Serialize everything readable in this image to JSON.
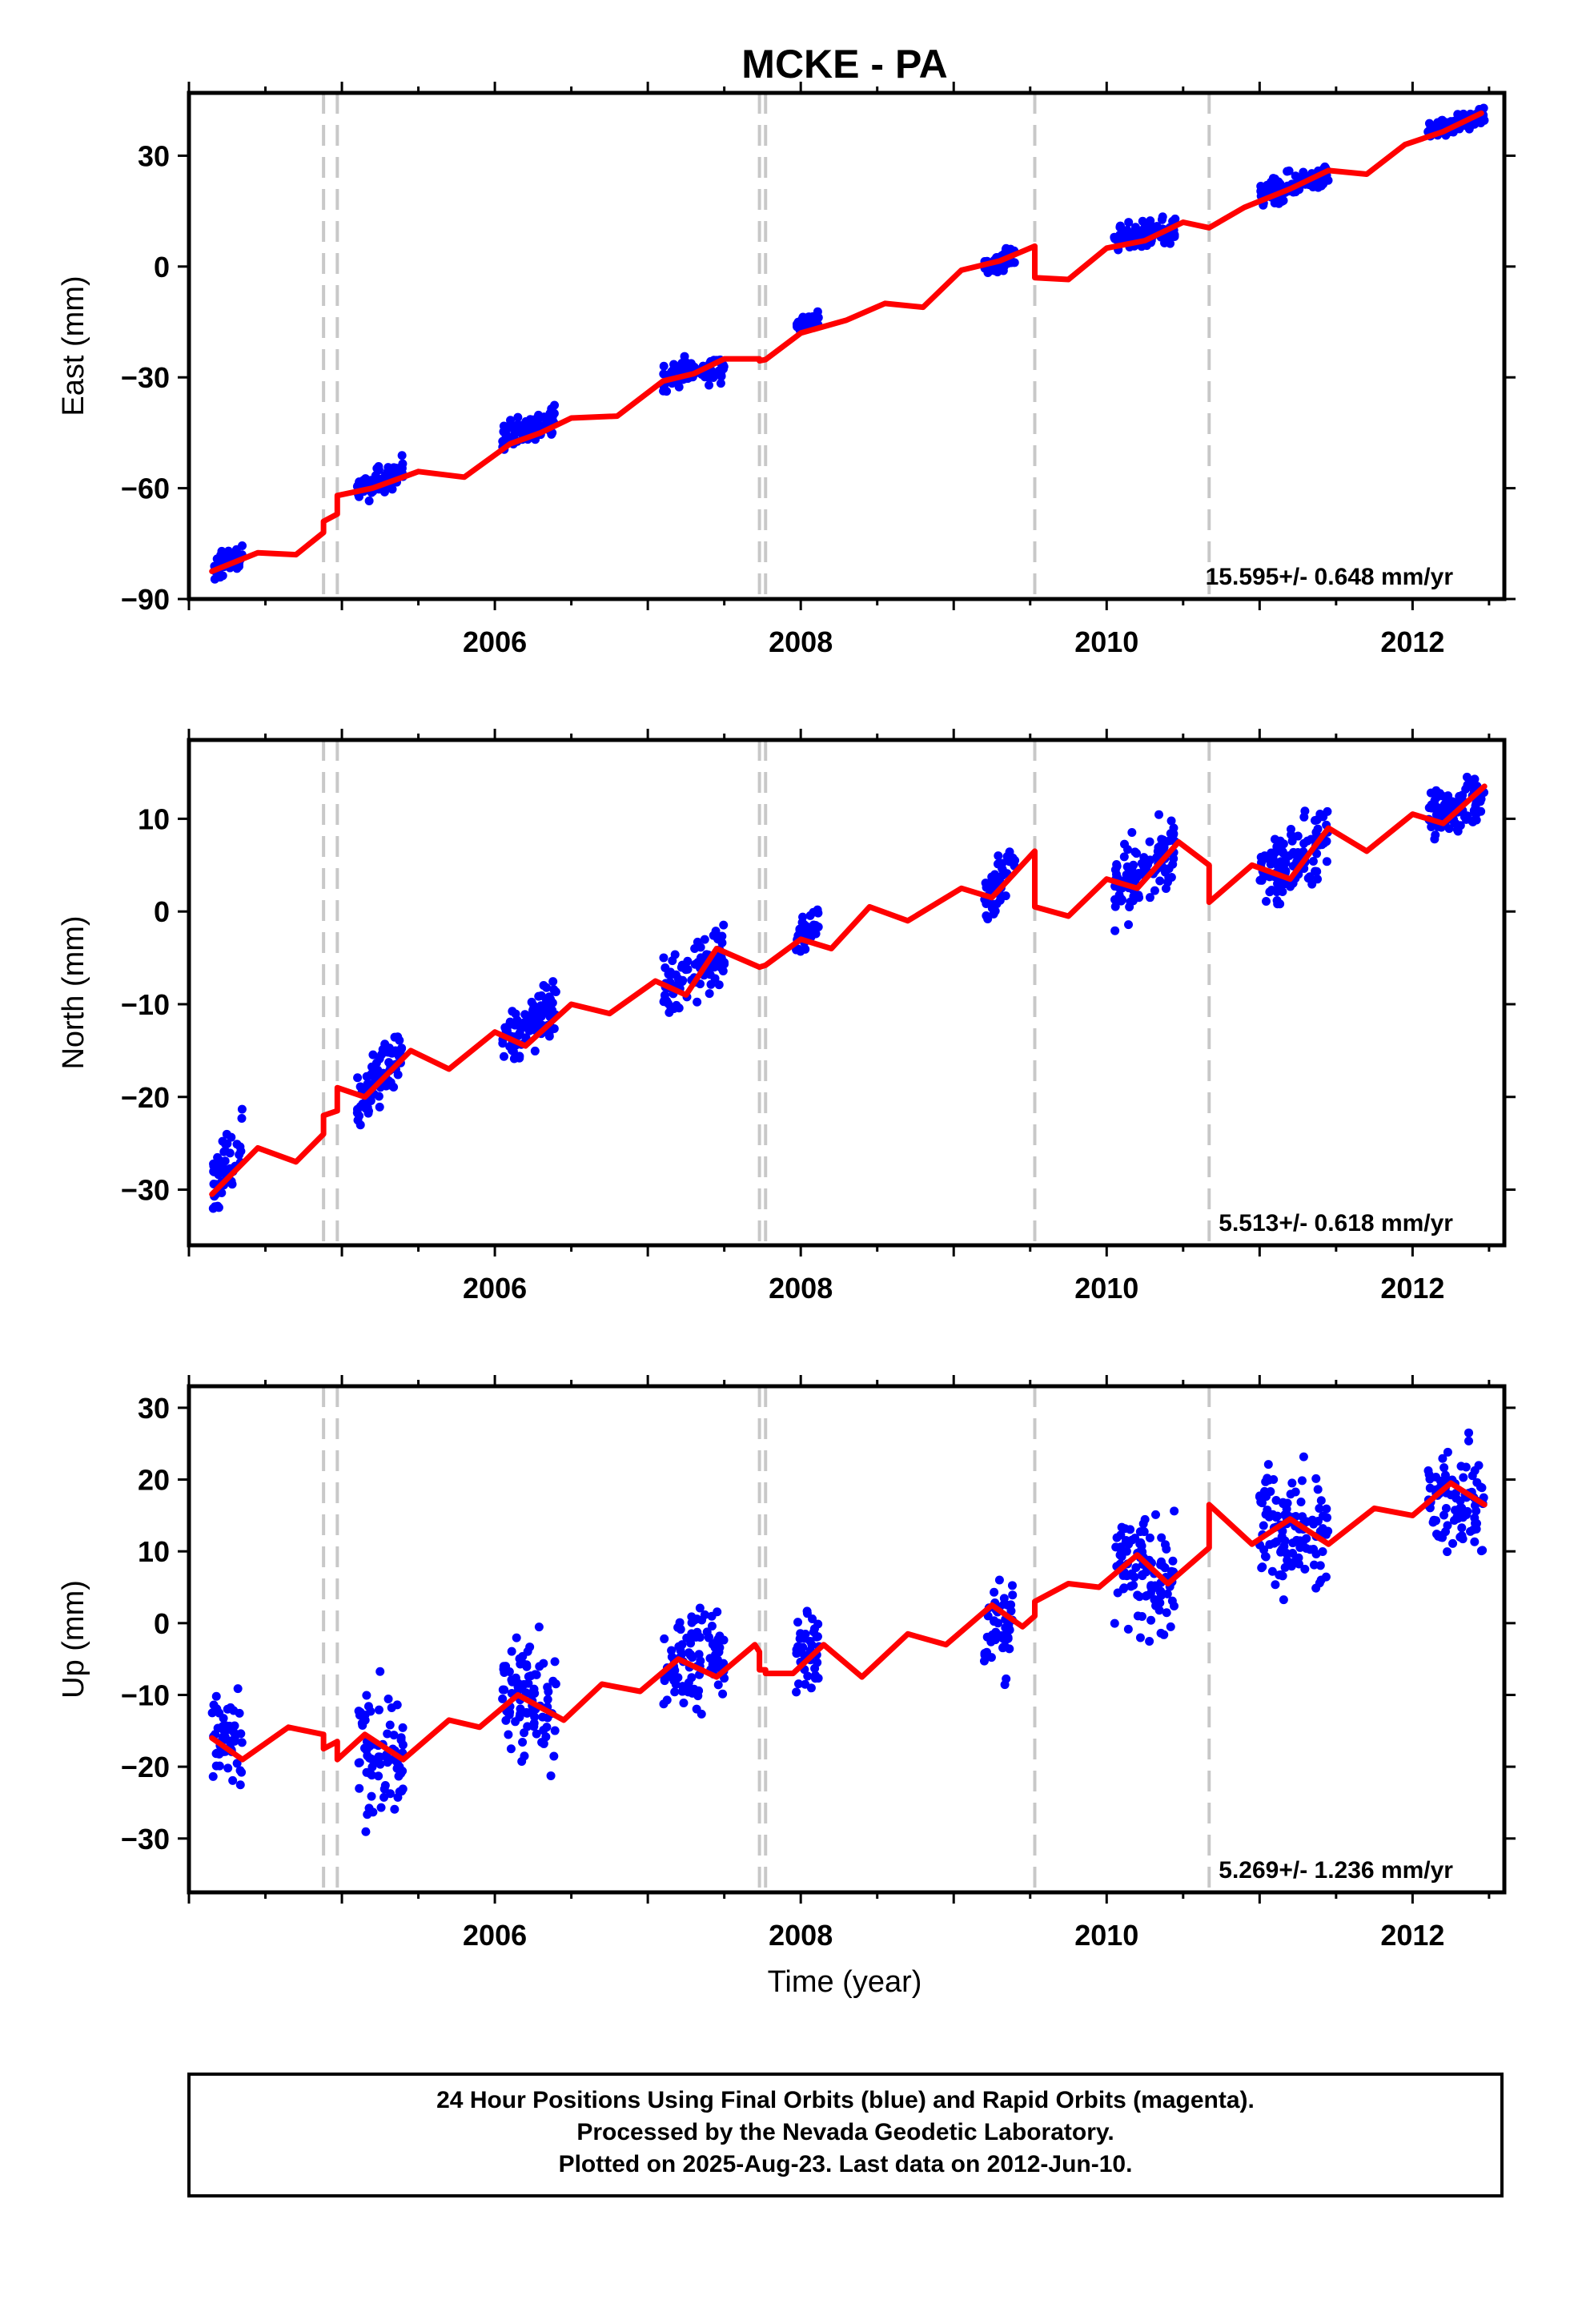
{
  "title": "MCKE - PA",
  "xlabel": "Time (year)",
  "footer": {
    "line1": "24 Hour Positions Using Final Orbits (blue) and Rapid Orbits (magenta).",
    "line2": "Processed by the Nevada Geodetic Laboratory.",
    "line3": "Plotted on 2025-Aug-23. Last data on 2012-Jun-10."
  },
  "colors": {
    "data_points": "#0000ff",
    "model_line": "#ff0000",
    "offset_lines": "#c8c8c8",
    "frame": "#000000"
  },
  "chart_data": [
    {
      "type": "scatter",
      "name": "east",
      "ylabel": "East (mm)",
      "rate_text": "15.595+/- 0.648 mm/yr",
      "xlim": [
        2004.0,
        2012.6
      ],
      "ylim": [
        -90,
        47
      ],
      "xticks": [
        2006,
        2008,
        2010,
        2012
      ],
      "yticks": [
        -90,
        -60,
        -30,
        0,
        30
      ],
      "offset_epochs": [
        2004.88,
        2004.97,
        2007.73,
        2007.77,
        2009.53,
        2010.67
      ],
      "model": [
        [
          2004.15,
          -82.5
        ],
        [
          2004.45,
          -77.5
        ],
        [
          2004.7,
          -78
        ],
        [
          2004.88,
          -72
        ],
        [
          2004.88,
          -69
        ],
        [
          2004.97,
          -67
        ],
        [
          2004.97,
          -62
        ],
        [
          2005.2,
          -60
        ],
        [
          2005.5,
          -55.5
        ],
        [
          2005.8,
          -57
        ],
        [
          2006.1,
          -48
        ],
        [
          2006.3,
          -45
        ],
        [
          2006.5,
          -41
        ],
        [
          2006.8,
          -40.5
        ],
        [
          2007.1,
          -31
        ],
        [
          2007.3,
          -29
        ],
        [
          2007.5,
          -25
        ],
        [
          2007.73,
          -25
        ],
        [
          2007.73,
          -25.5
        ],
        [
          2007.77,
          -25.2
        ],
        [
          2008.0,
          -18
        ],
        [
          2008.3,
          -14.5
        ],
        [
          2008.55,
          -10
        ],
        [
          2008.8,
          -11
        ],
        [
          2009.05,
          -1
        ],
        [
          2009.3,
          1.5
        ],
        [
          2009.53,
          5.5
        ],
        [
          2009.53,
          -3
        ],
        [
          2009.75,
          -3.5
        ],
        [
          2010.0,
          5
        ],
        [
          2010.25,
          7
        ],
        [
          2010.5,
          12
        ],
        [
          2010.67,
          10.5
        ],
        [
          2010.9,
          16
        ],
        [
          2011.2,
          21
        ],
        [
          2011.45,
          26
        ],
        [
          2011.7,
          25
        ],
        [
          2011.95,
          33
        ],
        [
          2012.2,
          36.5
        ],
        [
          2012.45,
          41.5
        ]
      ],
      "segments": [
        {
          "x": [
            2004.15,
            2004.35
          ],
          "y_center": [
            -82.5,
            -78
          ],
          "spread": 2.5
        },
        {
          "x": [
            2005.1,
            2005.4
          ],
          "y_center": [
            -61,
            -55
          ],
          "spread": 2.5
        },
        {
          "x": [
            2006.05,
            2006.4
          ],
          "y_center": [
            -46,
            -41
          ],
          "spread": 2.5
        },
        {
          "x": [
            2007.1,
            2007.5
          ],
          "y_center": [
            -30,
            -27
          ],
          "spread": 2.5
        },
        {
          "x": [
            2007.97,
            2008.12
          ],
          "y_center": [
            -16,
            -14
          ],
          "spread": 1.5
        },
        {
          "x": [
            2009.2,
            2009.4
          ],
          "y_center": [
            0,
            3
          ],
          "spread": 2
        },
        {
          "x": [
            2010.05,
            2010.45
          ],
          "y_center": [
            7,
            10
          ],
          "spread": 2.5
        },
        {
          "x": [
            2011.0,
            2011.45
          ],
          "y_center": [
            19,
            25
          ],
          "spread": 2.5
        },
        {
          "x": [
            2012.1,
            2012.47
          ],
          "y_center": [
            36,
            41
          ],
          "spread": 1.5
        }
      ]
    },
    {
      "type": "scatter",
      "name": "north",
      "ylabel": "North (mm)",
      "rate_text": "5.513+/- 0.618 mm/yr",
      "xlim": [
        2004.0,
        2012.6
      ],
      "ylim": [
        -36,
        18.5
      ],
      "xticks": [
        2006,
        2008,
        2010,
        2012
      ],
      "yticks": [
        -30,
        -20,
        -10,
        0,
        10
      ],
      "offset_epochs": [
        2004.88,
        2004.97,
        2007.73,
        2007.77,
        2009.53,
        2010.67
      ],
      "model": [
        [
          2004.15,
          -30.5
        ],
        [
          2004.3,
          -28
        ],
        [
          2004.45,
          -25.5
        ],
        [
          2004.7,
          -27
        ],
        [
          2004.88,
          -24
        ],
        [
          2004.88,
          -22
        ],
        [
          2004.97,
          -21.5
        ],
        [
          2004.97,
          -19
        ],
        [
          2005.15,
          -20
        ],
        [
          2005.45,
          -15
        ],
        [
          2005.7,
          -17
        ],
        [
          2006.0,
          -13
        ],
        [
          2006.2,
          -14.5
        ],
        [
          2006.5,
          -10
        ],
        [
          2006.75,
          -11
        ],
        [
          2007.05,
          -7.5
        ],
        [
          2007.25,
          -9
        ],
        [
          2007.45,
          -4
        ],
        [
          2007.73,
          -6
        ],
        [
          2007.77,
          -5.8
        ],
        [
          2008.0,
          -3
        ],
        [
          2008.2,
          -4
        ],
        [
          2008.45,
          0.5
        ],
        [
          2008.7,
          -1
        ],
        [
          2009.05,
          2.5
        ],
        [
          2009.25,
          1.5
        ],
        [
          2009.53,
          6.5
        ],
        [
          2009.53,
          0.5
        ],
        [
          2009.75,
          -0.5
        ],
        [
          2010.0,
          3.5
        ],
        [
          2010.2,
          2.5
        ],
        [
          2010.47,
          7.5
        ],
        [
          2010.67,
          5
        ],
        [
          2010.67,
          1
        ],
        [
          2010.95,
          5
        ],
        [
          2011.2,
          3.5
        ],
        [
          2011.45,
          9
        ],
        [
          2011.7,
          6.5
        ],
        [
          2012.0,
          10.5
        ],
        [
          2012.2,
          9.5
        ],
        [
          2012.47,
          13.5
        ]
      ],
      "segments": [
        {
          "x": [
            2004.15,
            2004.35
          ],
          "y_center": [
            -30,
            -24
          ],
          "spread": 2.5
        },
        {
          "x": [
            2005.1,
            2005.4
          ],
          "y_center": [
            -20.5,
            -15
          ],
          "spread": 2
        },
        {
          "x": [
            2006.05,
            2006.4
          ],
          "y_center": [
            -14,
            -10
          ],
          "spread": 2.5
        },
        {
          "x": [
            2007.1,
            2007.5
          ],
          "y_center": [
            -9,
            -4
          ],
          "spread": 2.5
        },
        {
          "x": [
            2007.97,
            2008.12
          ],
          "y_center": [
            -3,
            -1
          ],
          "spread": 1.5
        },
        {
          "x": [
            2009.2,
            2009.4
          ],
          "y_center": [
            1.5,
            5
          ],
          "spread": 2
        },
        {
          "x": [
            2010.05,
            2010.45
          ],
          "y_center": [
            2,
            7
          ],
          "spread": 2.5
        },
        {
          "x": [
            2011.0,
            2011.45
          ],
          "y_center": [
            4,
            8
          ],
          "spread": 2.5
        },
        {
          "x": [
            2012.1,
            2012.47
          ],
          "y_center": [
            10,
            12.5
          ],
          "spread": 2
        }
      ]
    },
    {
      "type": "scatter",
      "name": "up",
      "ylabel": "Up (mm)",
      "rate_text": "5.269+/- 1.236 mm/yr",
      "xlim": [
        2004.0,
        2012.6
      ],
      "ylim": [
        -37.5,
        33
      ],
      "xticks": [
        2006,
        2008,
        2010,
        2012
      ],
      "yticks": [
        -30,
        -20,
        -10,
        0,
        10,
        20,
        30
      ],
      "offset_epochs": [
        2004.88,
        2004.97,
        2007.73,
        2007.77,
        2009.53,
        2010.67
      ],
      "model": [
        [
          2004.15,
          -16
        ],
        [
          2004.35,
          -19
        ],
        [
          2004.65,
          -14.5
        ],
        [
          2004.88,
          -15.5
        ],
        [
          2004.88,
          -17.5
        ],
        [
          2004.97,
          -16.5
        ],
        [
          2004.97,
          -19
        ],
        [
          2005.15,
          -15.5
        ],
        [
          2005.4,
          -19
        ],
        [
          2005.7,
          -13.5
        ],
        [
          2005.9,
          -14.5
        ],
        [
          2006.15,
          -10
        ],
        [
          2006.45,
          -13.5
        ],
        [
          2006.7,
          -8.5
        ],
        [
          2006.95,
          -9.5
        ],
        [
          2007.2,
          -5
        ],
        [
          2007.45,
          -7.5
        ],
        [
          2007.7,
          -3
        ],
        [
          2007.73,
          -4
        ],
        [
          2007.73,
          -6.5
        ],
        [
          2007.77,
          -6.5
        ],
        [
          2007.77,
          -7
        ],
        [
          2007.95,
          -7
        ],
        [
          2008.15,
          -3
        ],
        [
          2008.4,
          -7.5
        ],
        [
          2008.7,
          -1.5
        ],
        [
          2008.95,
          -3
        ],
        [
          2009.25,
          2.5
        ],
        [
          2009.45,
          -0.5
        ],
        [
          2009.53,
          1
        ],
        [
          2009.53,
          3
        ],
        [
          2009.75,
          5.5
        ],
        [
          2009.95,
          5
        ],
        [
          2010.2,
          9.5
        ],
        [
          2010.4,
          5.5
        ],
        [
          2010.67,
          10.5
        ],
        [
          2010.67,
          16.5
        ],
        [
          2010.95,
          11
        ],
        [
          2011.2,
          14.5
        ],
        [
          2011.45,
          11
        ],
        [
          2011.75,
          16
        ],
        [
          2012.0,
          15
        ],
        [
          2012.25,
          19.5
        ],
        [
          2012.47,
          16.5
        ]
      ],
      "segments": [
        {
          "x": [
            2004.15,
            2004.35
          ],
          "y_center": [
            -16,
            -18
          ],
          "spread": 5
        },
        {
          "x": [
            2005.1,
            2005.4
          ],
          "y_center": [
            -18,
            -19
          ],
          "spread": 6
        },
        {
          "x": [
            2006.05,
            2006.4
          ],
          "y_center": [
            -10,
            -12
          ],
          "spread": 5.5
        },
        {
          "x": [
            2007.1,
            2007.5
          ],
          "y_center": [
            -6,
            -4
          ],
          "spread": 5
        },
        {
          "x": [
            2007.97,
            2008.12
          ],
          "y_center": [
            -4,
            -3
          ],
          "spread": 4.5
        },
        {
          "x": [
            2009.2,
            2009.4
          ],
          "y_center": [
            -2,
            0
          ],
          "spread": 4.5
        },
        {
          "x": [
            2010.05,
            2010.45
          ],
          "y_center": [
            8,
            6
          ],
          "spread": 6
        },
        {
          "x": [
            2011.0,
            2011.45
          ],
          "y_center": [
            14,
            12
          ],
          "spread": 5.5
        },
        {
          "x": [
            2012.1,
            2012.47
          ],
          "y_center": [
            18,
            16
          ],
          "spread": 5
        }
      ]
    }
  ]
}
